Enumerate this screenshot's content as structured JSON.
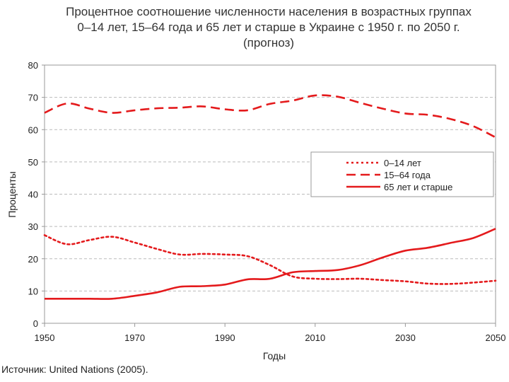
{
  "title": {
    "line1": "Процентное соотношение численности населения в возрастных группах",
    "line2": "0–14 лет, 15–64 года и  65 лет и старше в Украине с 1950 г. по 2050 г.",
    "line3": "(прогноз)"
  },
  "source": "Источник: United Nations (2005).",
  "chart_data": {
    "type": "line",
    "xlabel": "Годы",
    "ylabel": "Проценты",
    "xlim": [
      1950,
      2050
    ],
    "ylim": [
      0,
      80
    ],
    "x_ticks": [
      "1950",
      "1970",
      "1990",
      "2010",
      "2030",
      "2050"
    ],
    "y_ticks": [
      "0",
      "10",
      "20",
      "30",
      "40",
      "50",
      "60",
      "70",
      "80"
    ],
    "grid": "horizontal dashed",
    "legend_position": "center-right",
    "x": [
      1950,
      1955,
      1960,
      1965,
      1970,
      1975,
      1980,
      1985,
      1990,
      1995,
      2000,
      2005,
      2010,
      2015,
      2020,
      2025,
      2030,
      2035,
      2040,
      2045,
      2050
    ],
    "series": [
      {
        "name": "0–14 лет",
        "style": "dotted",
        "color": "#e41a1c",
        "values": [
          27.3,
          24.5,
          25.8,
          26.8,
          25.0,
          23.0,
          21.3,
          21.5,
          21.3,
          20.8,
          18.0,
          14.5,
          13.8,
          13.7,
          13.8,
          13.4,
          13.0,
          12.3,
          12.2,
          12.6,
          13.2
        ]
      },
      {
        "name": "15–64 года",
        "style": "dashed",
        "color": "#e41a1c",
        "values": [
          65.2,
          68.1,
          66.5,
          65.2,
          66.0,
          66.6,
          66.8,
          67.2,
          66.3,
          66.0,
          68.0,
          69.0,
          70.6,
          70.2,
          68.3,
          66.5,
          65.0,
          64.6,
          63.3,
          61.1,
          57.6
        ]
      },
      {
        "name": "65 лет и старше",
        "style": "solid",
        "color": "#e41a1c",
        "values": [
          7.6,
          7.6,
          7.6,
          7.6,
          8.5,
          9.6,
          11.3,
          11.5,
          12.0,
          13.6,
          13.8,
          15.8,
          16.2,
          16.5,
          18.0,
          20.4,
          22.5,
          23.4,
          24.9,
          26.4,
          29.3
        ]
      }
    ]
  }
}
